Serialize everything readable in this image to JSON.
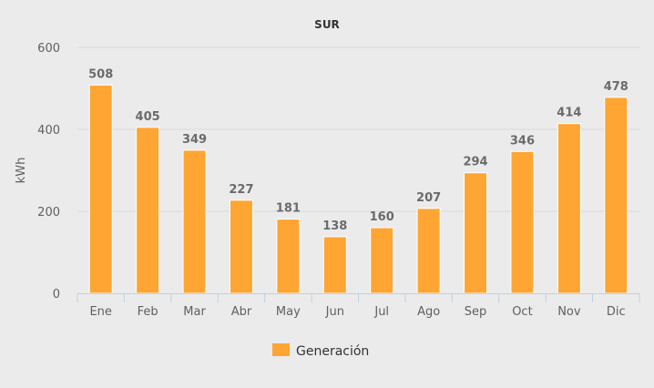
{
  "chart_data": {
    "type": "bar",
    "title": "SUR",
    "xlabel": "",
    "ylabel": "kWh",
    "ylim": [
      0,
      600
    ],
    "yticks": [
      0,
      200,
      400,
      600
    ],
    "grid": true,
    "legend_placement": "bottom",
    "categories": [
      "Ene",
      "Feb",
      "Mar",
      "Abr",
      "May",
      "Jun",
      "Jul",
      "Ago",
      "Sep",
      "Oct",
      "Nov",
      "Dic"
    ],
    "series": [
      {
        "name": "Generación",
        "color": "#ffa533",
        "values": [
          508,
          405,
          349,
          227,
          181,
          138,
          160,
          207,
          294,
          346,
          414,
          478
        ]
      }
    ],
    "data_labels": true
  }
}
